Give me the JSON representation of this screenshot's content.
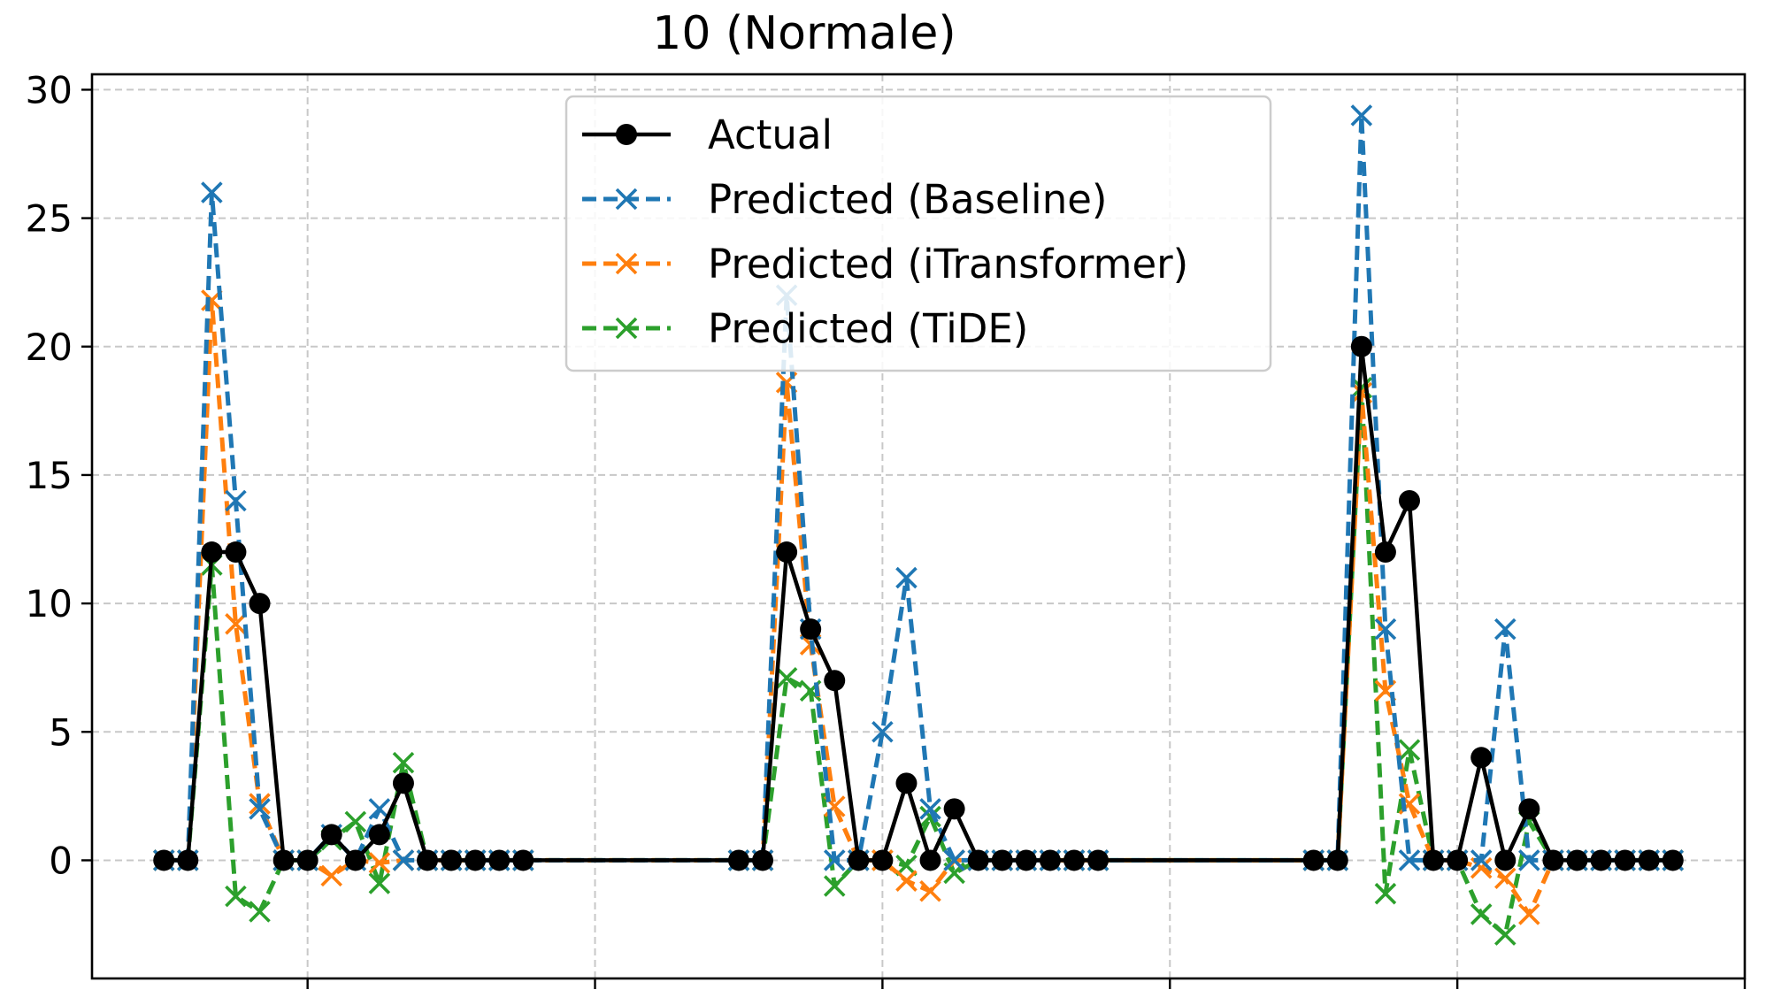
{
  "chart_data": {
    "type": "line",
    "title": "10 (Normale)",
    "xlabel": "",
    "ylabel": "",
    "x": [
      0,
      1,
      2,
      3,
      4,
      5,
      6,
      7,
      8,
      9,
      10,
      11,
      12,
      13,
      14,
      15,
      24,
      25,
      26,
      27,
      28,
      29,
      30,
      31,
      32,
      33,
      34,
      35,
      36,
      37,
      38,
      39,
      48,
      49,
      50,
      51,
      52,
      53,
      54,
      55,
      56,
      57,
      58,
      59,
      60,
      61,
      62,
      63
    ],
    "xlim": [
      -3,
      66
    ],
    "xticks": [
      6,
      18,
      30,
      42,
      54,
      66
    ],
    "ylim": [
      -4.6,
      30.6
    ],
    "yticks": [
      0,
      5,
      10,
      15,
      20,
      25,
      30
    ],
    "grid": true,
    "legend_position": "top-center",
    "series": [
      {
        "name": "Actual",
        "color": "#000000",
        "style": "solid",
        "marker": "circle",
        "values": [
          0,
          0,
          12,
          12,
          10,
          0,
          0,
          1,
          0,
          1,
          3,
          0,
          0,
          0,
          0,
          0,
          0,
          0,
          12,
          9,
          7,
          0,
          0,
          3,
          0,
          2,
          0,
          0,
          0,
          0,
          0,
          0,
          0,
          0,
          20,
          12,
          14,
          0,
          0,
          4,
          0,
          2,
          0,
          0,
          0,
          0,
          0,
          0
        ]
      },
      {
        "name": "Predicted (Baseline)",
        "color": "#1f77b4",
        "style": "dashed",
        "marker": "x",
        "values": [
          0,
          0,
          26,
          14,
          2,
          0,
          0,
          1,
          0,
          2,
          0,
          0,
          0,
          0,
          0,
          0,
          0,
          0,
          22,
          9,
          0,
          0,
          5,
          11,
          2,
          0,
          0,
          0,
          0,
          0,
          0,
          0,
          0,
          0,
          29,
          9,
          0,
          0,
          0,
          0,
          9,
          0,
          0,
          0,
          0,
          0,
          0,
          0
        ]
      },
      {
        "name": "Predicted (iTransformer)",
        "color": "#ff7f0e",
        "style": "dashed",
        "marker": "x",
        "values": [
          0,
          0,
          21.8,
          9.2,
          2.2,
          0,
          0,
          -0.6,
          0,
          -0.1,
          0,
          0,
          0,
          0,
          0,
          0,
          0,
          0,
          18.6,
          8.4,
          2.1,
          0,
          0,
          -0.8,
          -1.2,
          0,
          0,
          0,
          0,
          0,
          0,
          0,
          0,
          0,
          18.2,
          6.6,
          2.2,
          0,
          0,
          -0.3,
          -0.7,
          -2.1,
          0,
          0,
          0,
          0,
          0,
          0
        ]
      },
      {
        "name": "Predicted (TiDE)",
        "color": "#2ca02c",
        "style": "dashed",
        "marker": "x",
        "values": [
          0,
          0,
          11.5,
          -1.4,
          -2,
          0,
          0,
          0.8,
          1.5,
          -0.9,
          3.8,
          0,
          0,
          0,
          0,
          0,
          0,
          0,
          7.1,
          6.6,
          -1,
          0,
          0,
          -0.2,
          1.7,
          -0.5,
          0,
          0,
          0,
          0,
          0,
          0,
          0,
          0,
          18.4,
          -1.3,
          4.3,
          0,
          0,
          -2.1,
          -2.9,
          1.5,
          0,
          0,
          0,
          0,
          0,
          0
        ]
      }
    ]
  }
}
